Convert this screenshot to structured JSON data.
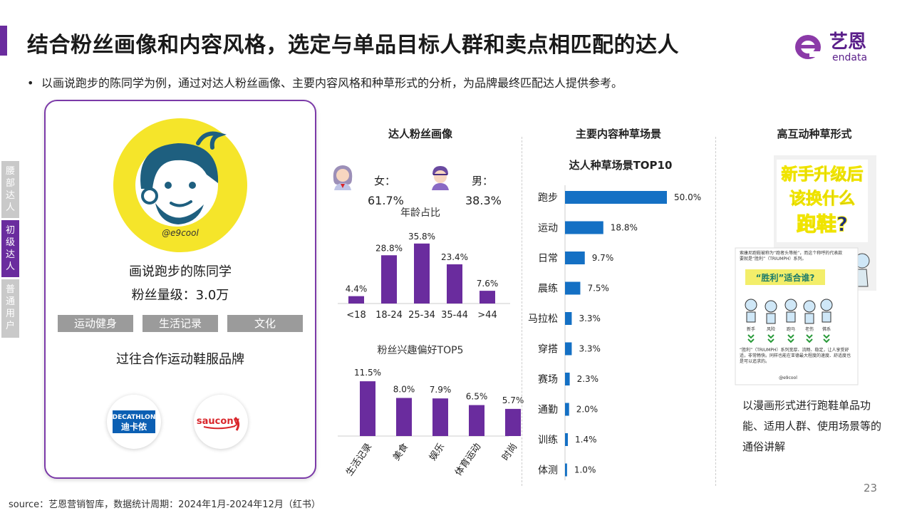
{
  "header": {
    "title": "结合粉丝画像和内容风格，选定与单品目标人群和卖点相匹配的达人",
    "logo_cn": "艺恩",
    "logo_en": "endata"
  },
  "bullet": "以画说跑步的陈同学为例，通过对达人粉丝画像、主要内容风格和种草形式的分析，为品牌最终匹配达人提供参考。",
  "side_tabs": [
    {
      "label": "腰部达人",
      "active": false
    },
    {
      "label": "初级达人",
      "active": true
    },
    {
      "label": "普通用户",
      "active": false
    }
  ],
  "profile": {
    "avatar_handle": "@e9cool",
    "name": "画说跑步的陈同学",
    "fans": "粉丝量级：3.0万",
    "tags": [
      "运动健身",
      "生活记录",
      "文化"
    ],
    "brands_title": "过往合作运动鞋服品牌",
    "brands": [
      {
        "name_en": "DECATHLON",
        "name_cn": "迪卡侬",
        "color": "#0b5fb3"
      },
      {
        "name_en": "saucony",
        "color": "#d9262b"
      }
    ]
  },
  "fan_profile": {
    "title": "达人粉丝画像",
    "female_label": "女：",
    "female_value": "61.7%",
    "male_label": "男：",
    "male_value": "38.3%"
  },
  "colors": {
    "purple": "#6a2c9e",
    "blue": "#1470c4",
    "gray_tag": "#9b9b9b"
  },
  "chart_data": [
    {
      "type": "bar",
      "title": "年龄占比",
      "categories": [
        "<18",
        "18-24",
        "25-34",
        "35-44",
        ">44"
      ],
      "values": [
        4.4,
        28.8,
        35.8,
        23.4,
        7.6
      ],
      "labels": [
        "4.4%",
        "28.8%",
        "35.8%",
        "23.4%",
        "7.6%"
      ],
      "ylim": [
        0,
        40
      ]
    },
    {
      "type": "bar",
      "title": "粉丝兴趣偏好TOP5",
      "categories": [
        "生活记录",
        "美食",
        "娱乐",
        "体育运动",
        "时尚"
      ],
      "values": [
        11.5,
        8.0,
        7.9,
        6.5,
        5.7
      ],
      "labels": [
        "11.5%",
        "8.0%",
        "7.9%",
        "6.5%",
        "5.7%"
      ],
      "ylim": [
        0,
        13
      ]
    },
    {
      "type": "bar",
      "orientation": "horizontal",
      "title": "达人种草场景TOP10",
      "categories": [
        "跑步",
        "运动",
        "日常",
        "晨练",
        "马拉松",
        "穿搭",
        "赛场",
        "通勤",
        "训练",
        "体测"
      ],
      "values": [
        50.0,
        18.8,
        9.7,
        7.5,
        3.3,
        3.3,
        2.3,
        2.0,
        1.4,
        1.0
      ],
      "labels": [
        "50.0%",
        "18.8%",
        "9.7%",
        "7.5%",
        "3.3%",
        "3.3%",
        "2.3%",
        "2.0%",
        "1.4%",
        "1.0%"
      ],
      "xlim": [
        0,
        50
      ]
    }
  ],
  "scene": {
    "title": "主要内容种草场景"
  },
  "interaction": {
    "title": "高互动种草形式",
    "comic_title_1": "新手升级后",
    "comic_title_2": "该换什么",
    "comic_title_3": "跑鞋?",
    "comic_text_1": "索康尼跑鞋被称为“跑者头等舱”，而这个称呼的代表款要就是“胜利”（TRIUMPH）系列。",
    "comic_badge": "“胜利”适合谁?",
    "comic_people": [
      "新手",
      "风险",
      "跑马",
      "老伤",
      "佛系"
    ],
    "comic_text_2": "“胜利”（TRIUMPH）系列宽厚、流畅、稳定，让人享受舒适，非常畅快。同样也能在亚德最大程度的速度、舒适度也是可以追求的。",
    "comic_handle": "@e9cool",
    "desc": "以漫画形式进行跑鞋单品功能、适用人群、使用场景等的通俗讲解"
  },
  "footer": {
    "source": "source：艺恩营销智库，数据统计周期：2024年1月-2024年12月（红书）",
    "page": "23"
  }
}
